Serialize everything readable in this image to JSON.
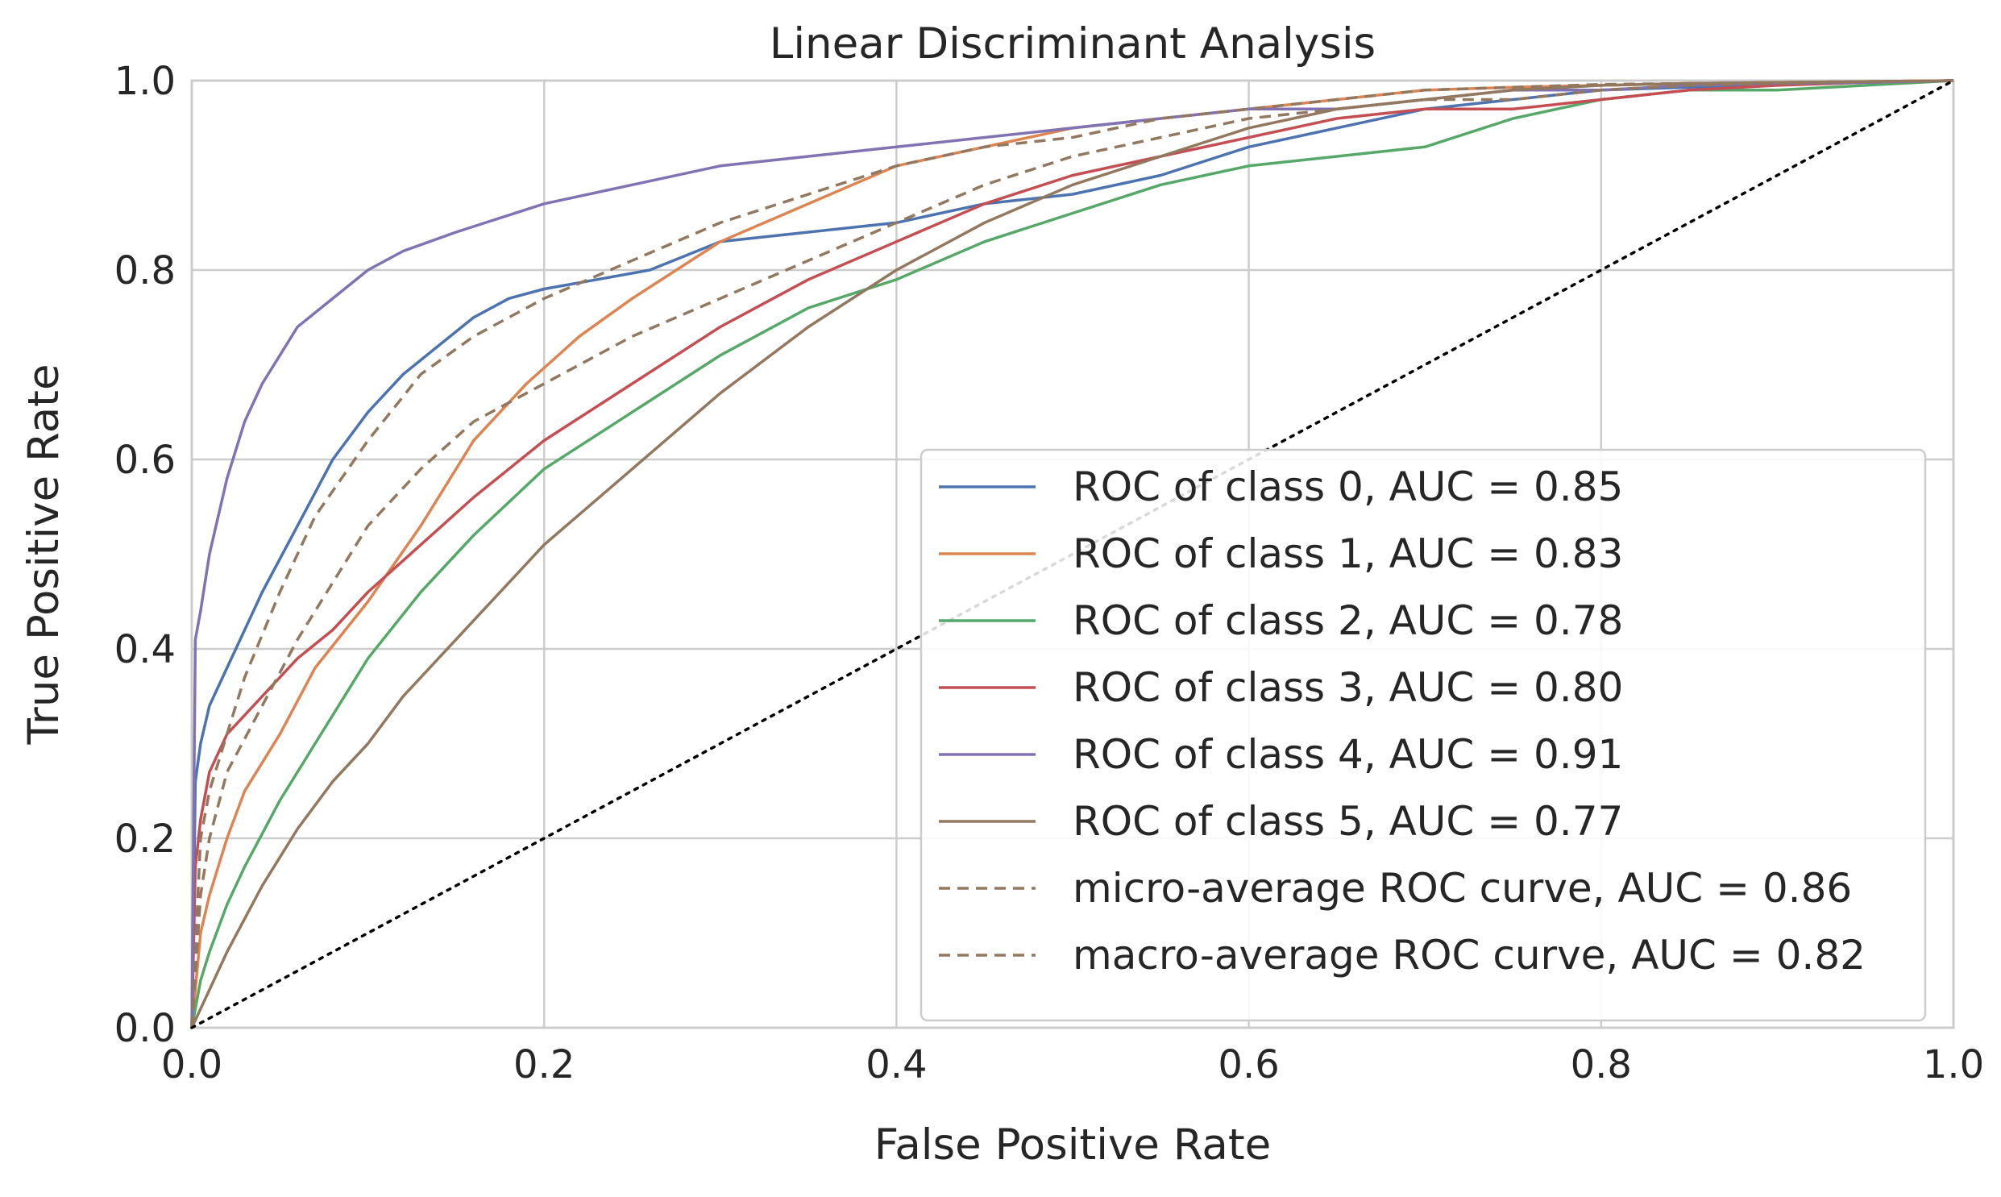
{
  "chart_data": {
    "type": "line",
    "title": "Linear Discriminant Analysis",
    "xlabel": "False Positive Rate",
    "ylabel": "True Positive Rate",
    "xlim": [
      0.0,
      1.0
    ],
    "ylim": [
      0.0,
      1.0
    ],
    "grid": true,
    "legend_position": "lower-right",
    "x_ticks": [
      "0.0",
      "0.2",
      "0.4",
      "0.6",
      "0.8",
      "1.0"
    ],
    "y_ticks": [
      "0.0",
      "0.2",
      "0.4",
      "0.6",
      "0.8",
      "1.0"
    ],
    "series": [
      {
        "name": "ROC of class 0, AUC = 0.85",
        "color": "#4c72b0",
        "style": "solid",
        "x": [
          0,
          0.002,
          0.005,
          0.01,
          0.02,
          0.03,
          0.04,
          0.06,
          0.08,
          0.1,
          0.12,
          0.14,
          0.16,
          0.18,
          0.2,
          0.23,
          0.26,
          0.3,
          0.35,
          0.4,
          0.45,
          0.5,
          0.55,
          0.6,
          0.65,
          0.7,
          0.75,
          0.8,
          0.85,
          0.9,
          0.95,
          1.0
        ],
        "y": [
          0,
          0.26,
          0.3,
          0.34,
          0.38,
          0.42,
          0.46,
          0.53,
          0.6,
          0.65,
          0.69,
          0.72,
          0.75,
          0.77,
          0.78,
          0.79,
          0.8,
          0.83,
          0.84,
          0.85,
          0.87,
          0.88,
          0.9,
          0.93,
          0.95,
          0.97,
          0.98,
          0.99,
          0.993,
          0.996,
          0.998,
          1.0
        ]
      },
      {
        "name": "ROC of class 1, AUC = 0.83",
        "color": "#dd8452",
        "style": "solid",
        "x": [
          0,
          0.005,
          0.01,
          0.02,
          0.03,
          0.05,
          0.07,
          0.1,
          0.13,
          0.16,
          0.19,
          0.22,
          0.25,
          0.3,
          0.35,
          0.4,
          0.45,
          0.5,
          0.55,
          0.6,
          0.65,
          0.7,
          0.75,
          0.8,
          0.85,
          0.9,
          0.95,
          1.0
        ],
        "y": [
          0,
          0.1,
          0.14,
          0.2,
          0.25,
          0.31,
          0.38,
          0.45,
          0.53,
          0.62,
          0.68,
          0.73,
          0.77,
          0.83,
          0.87,
          0.91,
          0.93,
          0.95,
          0.96,
          0.97,
          0.98,
          0.99,
          0.993,
          0.995,
          0.997,
          0.998,
          0.999,
          1.0
        ]
      },
      {
        "name": "ROC of class 2, AUC = 0.78",
        "color": "#55a868",
        "style": "solid",
        "x": [
          0,
          0.005,
          0.01,
          0.02,
          0.03,
          0.05,
          0.07,
          0.1,
          0.13,
          0.16,
          0.2,
          0.25,
          0.3,
          0.35,
          0.4,
          0.45,
          0.5,
          0.55,
          0.6,
          0.65,
          0.7,
          0.75,
          0.8,
          0.85,
          0.9,
          0.95,
          1.0
        ],
        "y": [
          0,
          0.05,
          0.08,
          0.13,
          0.17,
          0.24,
          0.3,
          0.39,
          0.46,
          0.52,
          0.59,
          0.65,
          0.71,
          0.76,
          0.79,
          0.83,
          0.86,
          0.89,
          0.91,
          0.92,
          0.93,
          0.96,
          0.98,
          0.99,
          0.99,
          0.995,
          1.0
        ]
      },
      {
        "name": "ROC of class 3, AUC = 0.80",
        "color": "#c44e52",
        "style": "solid",
        "x": [
          0,
          0.002,
          0.005,
          0.01,
          0.02,
          0.04,
          0.06,
          0.08,
          0.1,
          0.13,
          0.16,
          0.2,
          0.25,
          0.3,
          0.35,
          0.4,
          0.45,
          0.5,
          0.55,
          0.6,
          0.65,
          0.7,
          0.75,
          0.8,
          0.85,
          0.9,
          0.95,
          1.0
        ],
        "y": [
          0,
          0.17,
          0.22,
          0.27,
          0.31,
          0.35,
          0.39,
          0.42,
          0.46,
          0.51,
          0.56,
          0.62,
          0.68,
          0.74,
          0.79,
          0.83,
          0.87,
          0.9,
          0.92,
          0.94,
          0.96,
          0.97,
          0.97,
          0.98,
          0.99,
          0.995,
          0.998,
          1.0
        ]
      },
      {
        "name": "ROC of class 4, AUC = 0.91",
        "color": "#8172b3",
        "style": "solid",
        "x": [
          0,
          0.002,
          0.005,
          0.01,
          0.02,
          0.03,
          0.04,
          0.05,
          0.06,
          0.08,
          0.1,
          0.12,
          0.15,
          0.2,
          0.25,
          0.3,
          0.35,
          0.4,
          0.45,
          0.5,
          0.55,
          0.6,
          0.65,
          0.7,
          0.75,
          0.8,
          0.85,
          0.9,
          0.95,
          1.0
        ],
        "y": [
          0,
          0.41,
          0.44,
          0.5,
          0.58,
          0.64,
          0.68,
          0.71,
          0.74,
          0.77,
          0.8,
          0.82,
          0.84,
          0.87,
          0.89,
          0.91,
          0.92,
          0.93,
          0.94,
          0.95,
          0.96,
          0.97,
          0.97,
          0.98,
          0.99,
          0.99,
          0.995,
          0.997,
          0.998,
          1.0
        ]
      },
      {
        "name": "ROC of class 5, AUC = 0.77",
        "color": "#937860",
        "style": "solid",
        "x": [
          0,
          0.01,
          0.02,
          0.04,
          0.06,
          0.08,
          0.1,
          0.12,
          0.15,
          0.2,
          0.25,
          0.3,
          0.35,
          0.4,
          0.45,
          0.5,
          0.55,
          0.6,
          0.65,
          0.7,
          0.75,
          0.8,
          0.85,
          0.9,
          0.95,
          1.0
        ],
        "y": [
          0,
          0.04,
          0.08,
          0.15,
          0.21,
          0.26,
          0.3,
          0.35,
          0.41,
          0.51,
          0.59,
          0.67,
          0.74,
          0.8,
          0.85,
          0.89,
          0.92,
          0.95,
          0.97,
          0.98,
          0.99,
          0.995,
          0.997,
          0.998,
          0.999,
          1.0
        ]
      },
      {
        "name": "micro-average ROC curve, AUC = 0.86",
        "color": "#937860",
        "style": "dashed",
        "x": [
          0,
          0.005,
          0.01,
          0.02,
          0.03,
          0.05,
          0.07,
          0.1,
          0.13,
          0.16,
          0.2,
          0.25,
          0.3,
          0.35,
          0.4,
          0.45,
          0.5,
          0.55,
          0.6,
          0.65,
          0.7,
          0.75,
          0.8,
          0.85,
          0.9,
          0.95,
          1.0
        ],
        "y": [
          0,
          0.2,
          0.25,
          0.31,
          0.37,
          0.46,
          0.54,
          0.62,
          0.69,
          0.73,
          0.77,
          0.81,
          0.85,
          0.88,
          0.91,
          0.93,
          0.94,
          0.96,
          0.97,
          0.98,
          0.99,
          0.993,
          0.996,
          0.997,
          0.998,
          0.999,
          1.0
        ]
      },
      {
        "name": "macro-average ROC curve, AUC = 0.82",
        "color": "#937860",
        "style": "dashed",
        "x": [
          0,
          0.005,
          0.01,
          0.02,
          0.04,
          0.06,
          0.08,
          0.1,
          0.13,
          0.16,
          0.2,
          0.25,
          0.3,
          0.35,
          0.4,
          0.45,
          0.5,
          0.55,
          0.6,
          0.65,
          0.7,
          0.75,
          0.8,
          0.85,
          0.9,
          0.95,
          1.0
        ],
        "y": [
          0,
          0.14,
          0.2,
          0.27,
          0.34,
          0.41,
          0.47,
          0.53,
          0.59,
          0.64,
          0.68,
          0.73,
          0.77,
          0.81,
          0.85,
          0.89,
          0.92,
          0.94,
          0.96,
          0.97,
          0.98,
          0.98,
          0.99,
          0.995,
          0.997,
          0.999,
          1.0
        ]
      },
      {
        "name": "",
        "color": "#000000",
        "style": "dotted",
        "legend": false,
        "x": [
          0,
          1
        ],
        "y": [
          0,
          1
        ]
      }
    ]
  }
}
